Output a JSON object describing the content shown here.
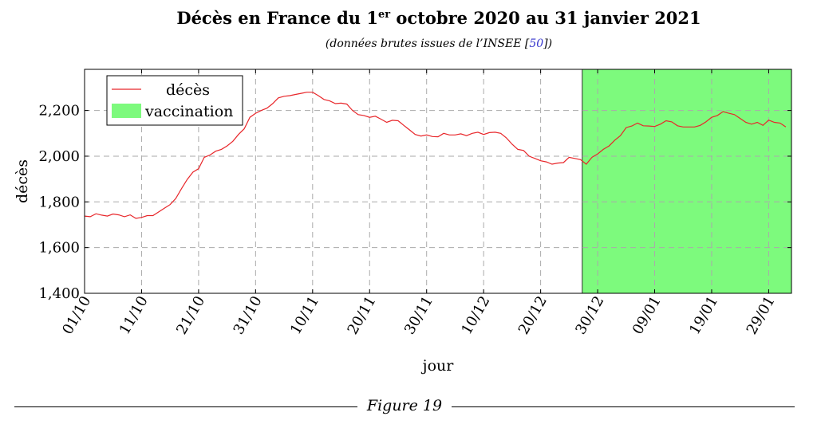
{
  "figure": {
    "title_main": "Décès en France du 1",
    "title_sup": "er",
    "title_rest": " octobre 2020 au 31 janvier 2021",
    "subtitle_before": "(données brutes issues de l’INSEE [",
    "subtitle_ref": "50",
    "subtitle_after": "])",
    "caption": "Figure 19"
  },
  "chart_data": {
    "type": "line",
    "title": "Décès en France du 1er octobre 2020 au 31 janvier 2021",
    "xlabel": "jour",
    "ylabel": "décès",
    "ylim": [
      1400,
      2380
    ],
    "xlim": [
      0,
      124
    ],
    "yticks": [
      1400,
      1600,
      1800,
      2000,
      2200
    ],
    "ytick_labels": [
      "1,400",
      "1,600",
      "1,800",
      "2,000",
      "2,200"
    ],
    "xticks": [
      0,
      10,
      20,
      30,
      40,
      50,
      60,
      70,
      80,
      90,
      100,
      110,
      120
    ],
    "xtick_labels": [
      "01/10",
      "11/10",
      "21/10",
      "31/10",
      "10/11",
      "20/11",
      "30/11",
      "10/12",
      "20/12",
      "30/12",
      "09/01",
      "19/01",
      "29/01"
    ],
    "grid": true,
    "legend_position": "top-left",
    "series": [
      {
        "name": "décès",
        "color": "#e8262a",
        "x": [
          0,
          1,
          2,
          3,
          4,
          5,
          6,
          7,
          8,
          9,
          10,
          11,
          12,
          13,
          14,
          15,
          16,
          17,
          18,
          19,
          20,
          21,
          22,
          23,
          24,
          25,
          26,
          27,
          28,
          29,
          30,
          31,
          32,
          33,
          34,
          35,
          36,
          37,
          38,
          39,
          40,
          41,
          42,
          43,
          44,
          45,
          46,
          47,
          48,
          49,
          50,
          51,
          52,
          53,
          54,
          55,
          56,
          57,
          58,
          59,
          60,
          61,
          62,
          63,
          64,
          65,
          66,
          67,
          68,
          69,
          70,
          71,
          72,
          73,
          74,
          75,
          76,
          77,
          78,
          79,
          80,
          81,
          82,
          83,
          84,
          85,
          86,
          87,
          88,
          89,
          90,
          91,
          92,
          93,
          94,
          95,
          96,
          97,
          98,
          99,
          100,
          101,
          102,
          103,
          104,
          105,
          106,
          107,
          108,
          109,
          110,
          111,
          112,
          113,
          114,
          115,
          116,
          117,
          118,
          119,
          120,
          121,
          122,
          123
        ],
        "values": [
          1738,
          1735,
          1748,
          1742,
          1738,
          1747,
          1743,
          1735,
          1743,
          1728,
          1732,
          1740,
          1740,
          1756,
          1772,
          1788,
          1815,
          1858,
          1898,
          1930,
          1945,
          1995,
          2005,
          2022,
          2030,
          2045,
          2065,
          2095,
          2120,
          2170,
          2188,
          2200,
          2210,
          2230,
          2255,
          2262,
          2265,
          2270,
          2275,
          2280,
          2280,
          2265,
          2248,
          2242,
          2230,
          2232,
          2228,
          2200,
          2182,
          2178,
          2170,
          2175,
          2162,
          2148,
          2157,
          2155,
          2135,
          2115,
          2095,
          2088,
          2093,
          2086,
          2085,
          2100,
          2093,
          2093,
          2098,
          2090,
          2100,
          2105,
          2095,
          2103,
          2105,
          2100,
          2080,
          2052,
          2030,
          2025,
          2000,
          1990,
          1980,
          1975,
          1965,
          1970,
          1972,
          1995,
          1990,
          1985,
          1965,
          1995,
          2010,
          2030,
          2045,
          2070,
          2090,
          2125,
          2132,
          2145,
          2133,
          2132,
          2130,
          2140,
          2155,
          2150,
          2133,
          2128,
          2128,
          2128,
          2135,
          2150,
          2170,
          2178,
          2195,
          2188,
          2182,
          2165,
          2148,
          2140,
          2148,
          2135,
          2158,
          2148,
          2145,
          2128
        ]
      }
    ],
    "shaded_region": {
      "name": "vaccination",
      "color": "#7dfa7d",
      "x_start": 87.3,
      "x_end": 124
    }
  }
}
